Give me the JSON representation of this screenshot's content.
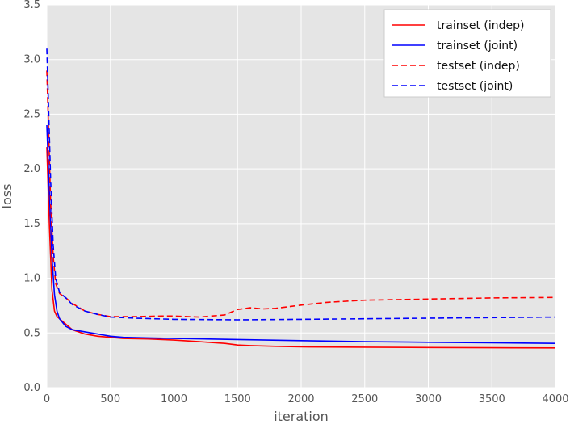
{
  "chart_data": {
    "type": "line",
    "title": "",
    "xlabel": "iteration",
    "ylabel": "loss",
    "xlim": [
      0,
      4000
    ],
    "ylim": [
      0.0,
      3.5
    ],
    "grid": true,
    "legend_position": "top-right",
    "x_ticks": [
      0,
      500,
      1000,
      1500,
      2000,
      2500,
      3000,
      3500,
      4000
    ],
    "x_tick_labels": [
      "0",
      "500",
      "1000",
      "1500",
      "2000",
      "2500",
      "3000",
      "3500",
      "4000"
    ],
    "y_ticks": [
      0.0,
      0.5,
      1.0,
      1.5,
      2.0,
      2.5,
      3.0,
      3.5
    ],
    "y_tick_labels": [
      "0.0",
      "0.5",
      "1.0",
      "1.5",
      "2.0",
      "2.5",
      "3.0",
      "3.5"
    ],
    "series": [
      {
        "name": "trainset (indep)",
        "color": "#ff0000",
        "style": "solid",
        "x": [
          0,
          20,
          40,
          60,
          80,
          100,
          150,
          200,
          300,
          400,
          500,
          600,
          800,
          1000,
          1200,
          1400,
          1500,
          1600,
          1800,
          2000,
          2500,
          3000,
          3500,
          4000
        ],
        "y": [
          2.2,
          1.5,
          0.9,
          0.7,
          0.65,
          0.63,
          0.58,
          0.53,
          0.49,
          0.47,
          0.46,
          0.45,
          0.445,
          0.435,
          0.42,
          0.405,
          0.39,
          0.385,
          0.378,
          0.373,
          0.37,
          0.367,
          0.365,
          0.363
        ]
      },
      {
        "name": "trainset (joint)",
        "color": "#0000ff",
        "style": "solid",
        "x": [
          0,
          20,
          40,
          60,
          80,
          100,
          150,
          200,
          300,
          400,
          500,
          600,
          800,
          1000,
          1500,
          2000,
          2500,
          3000,
          3500,
          4000
        ],
        "y": [
          2.4,
          1.8,
          1.2,
          0.85,
          0.7,
          0.63,
          0.56,
          0.53,
          0.51,
          0.49,
          0.47,
          0.46,
          0.455,
          0.45,
          0.44,
          0.43,
          0.42,
          0.415,
          0.41,
          0.405
        ]
      },
      {
        "name": "testset (indep)",
        "color": "#ff0000",
        "style": "dashed",
        "x": [
          0,
          15,
          30,
          50,
          70,
          100,
          150,
          200,
          300,
          400,
          500,
          700,
          900,
          1000,
          1200,
          1400,
          1500,
          1600,
          1700,
          1800,
          2000,
          2200,
          2500,
          3000,
          3500,
          4000
        ],
        "y": [
          2.9,
          2.3,
          1.7,
          1.2,
          0.95,
          0.86,
          0.82,
          0.77,
          0.7,
          0.67,
          0.65,
          0.65,
          0.655,
          0.655,
          0.645,
          0.665,
          0.715,
          0.73,
          0.72,
          0.725,
          0.755,
          0.78,
          0.8,
          0.81,
          0.82,
          0.825
        ]
      },
      {
        "name": "testset (joint)",
        "color": "#0000ff",
        "style": "dashed",
        "x": [
          0,
          15,
          30,
          50,
          70,
          100,
          150,
          200,
          300,
          400,
          500,
          700,
          1000,
          1500,
          2000,
          2500,
          3000,
          3500,
          4000
        ],
        "y": [
          3.1,
          2.5,
          1.9,
          1.3,
          1.0,
          0.87,
          0.82,
          0.76,
          0.7,
          0.67,
          0.645,
          0.635,
          0.625,
          0.62,
          0.625,
          0.63,
          0.635,
          0.64,
          0.645
        ]
      }
    ]
  },
  "colors": {
    "plot_background": "#e5e5e5",
    "grid": "#ffffff",
    "text": "#555555"
  }
}
